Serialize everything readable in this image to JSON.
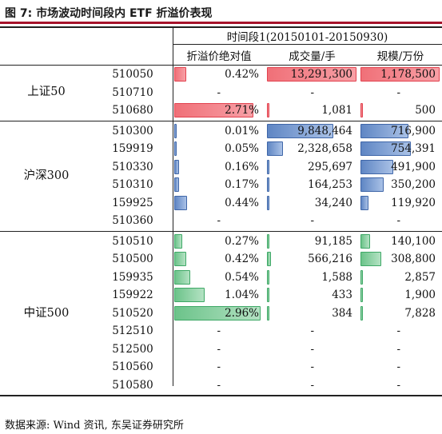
{
  "title": "图 7:  市场波动时间段内 ETF 折溢价表现",
  "header": {
    "period": "时间段1(20150101-20150930)",
    "col_premium": "折溢价绝对值",
    "col_volume": "成交量/手",
    "col_size": "规模/万份"
  },
  "groups": [
    {
      "name": "上证50",
      "color": "red",
      "rows": [
        {
          "code": "510050",
          "premium": "0.42%",
          "premium_num": 0.42,
          "volume": "13,291,300",
          "volume_num": 13291300,
          "size": "1,178,500",
          "size_num": 1178500
        },
        {
          "code": "510710",
          "premium": "-",
          "premium_num": 0,
          "volume": "-",
          "volume_num": 0,
          "size": "-",
          "size_num": 0
        },
        {
          "code": "510680",
          "premium": "2.71%",
          "premium_num": 2.71,
          "volume": "1,081",
          "volume_num": 1081,
          "size": "500",
          "size_num": 500
        }
      ]
    },
    {
      "name": "沪深300",
      "color": "blue",
      "rows": [
        {
          "code": "510300",
          "premium": "0.01%",
          "premium_num": 0.01,
          "volume": "9,848,464",
          "volume_num": 9848464,
          "size": "716,900",
          "size_num": 716900
        },
        {
          "code": "159919",
          "premium": "0.05%",
          "premium_num": 0.05,
          "volume": "2,328,658",
          "volume_num": 2328658,
          "size": "754,391",
          "size_num": 754391
        },
        {
          "code": "510330",
          "premium": "0.16%",
          "premium_num": 0.16,
          "volume": "295,697",
          "volume_num": 295697,
          "size": "491,900",
          "size_num": 491900
        },
        {
          "code": "510310",
          "premium": "0.17%",
          "premium_num": 0.17,
          "volume": "164,253",
          "volume_num": 164253,
          "size": "350,200",
          "size_num": 350200
        },
        {
          "code": "159925",
          "premium": "0.44%",
          "premium_num": 0.44,
          "volume": "34,240",
          "volume_num": 34240,
          "size": "119,920",
          "size_num": 119920
        },
        {
          "code": "510360",
          "premium": "-",
          "premium_num": 0,
          "volume": "-",
          "volume_num": 0,
          "size": "-",
          "size_num": 0
        }
      ]
    },
    {
      "name": "中证500",
      "color": "green",
      "rows": [
        {
          "code": "510510",
          "premium": "0.27%",
          "premium_num": 0.27,
          "volume": "91,185",
          "volume_num": 91185,
          "size": "140,100",
          "size_num": 140100
        },
        {
          "code": "510500",
          "premium": "0.42%",
          "premium_num": 0.42,
          "volume": "566,216",
          "volume_num": 566216,
          "size": "308,800",
          "size_num": 308800
        },
        {
          "code": "159935",
          "premium": "0.54%",
          "premium_num": 0.54,
          "volume": "1,588",
          "volume_num": 1588,
          "size": "2,857",
          "size_num": 2857
        },
        {
          "code": "159922",
          "premium": "1.04%",
          "premium_num": 1.04,
          "volume": "433",
          "volume_num": 433,
          "size": "1,900",
          "size_num": 1900
        },
        {
          "code": "510520",
          "premium": "2.96%",
          "premium_num": 2.96,
          "volume": "384",
          "volume_num": 384,
          "size": "7,828",
          "size_num": 7828
        },
        {
          "code": "512510",
          "premium": "-",
          "premium_num": 0,
          "volume": "-",
          "volume_num": 0,
          "size": "-",
          "size_num": 0
        },
        {
          "code": "512500",
          "premium": "-",
          "premium_num": 0,
          "volume": "-",
          "volume_num": 0,
          "size": "-",
          "size_num": 0
        },
        {
          "code": "510560",
          "premium": "-",
          "premium_num": 0,
          "volume": "-",
          "volume_num": 0,
          "size": "-",
          "size_num": 0
        },
        {
          "code": "510580",
          "premium": "-",
          "premium_num": 0,
          "volume": "-",
          "volume_num": 0,
          "size": "-",
          "size_num": 0
        }
      ]
    }
  ],
  "source": "数据来源:  Wind 资讯, 东吴证券研究所"
}
